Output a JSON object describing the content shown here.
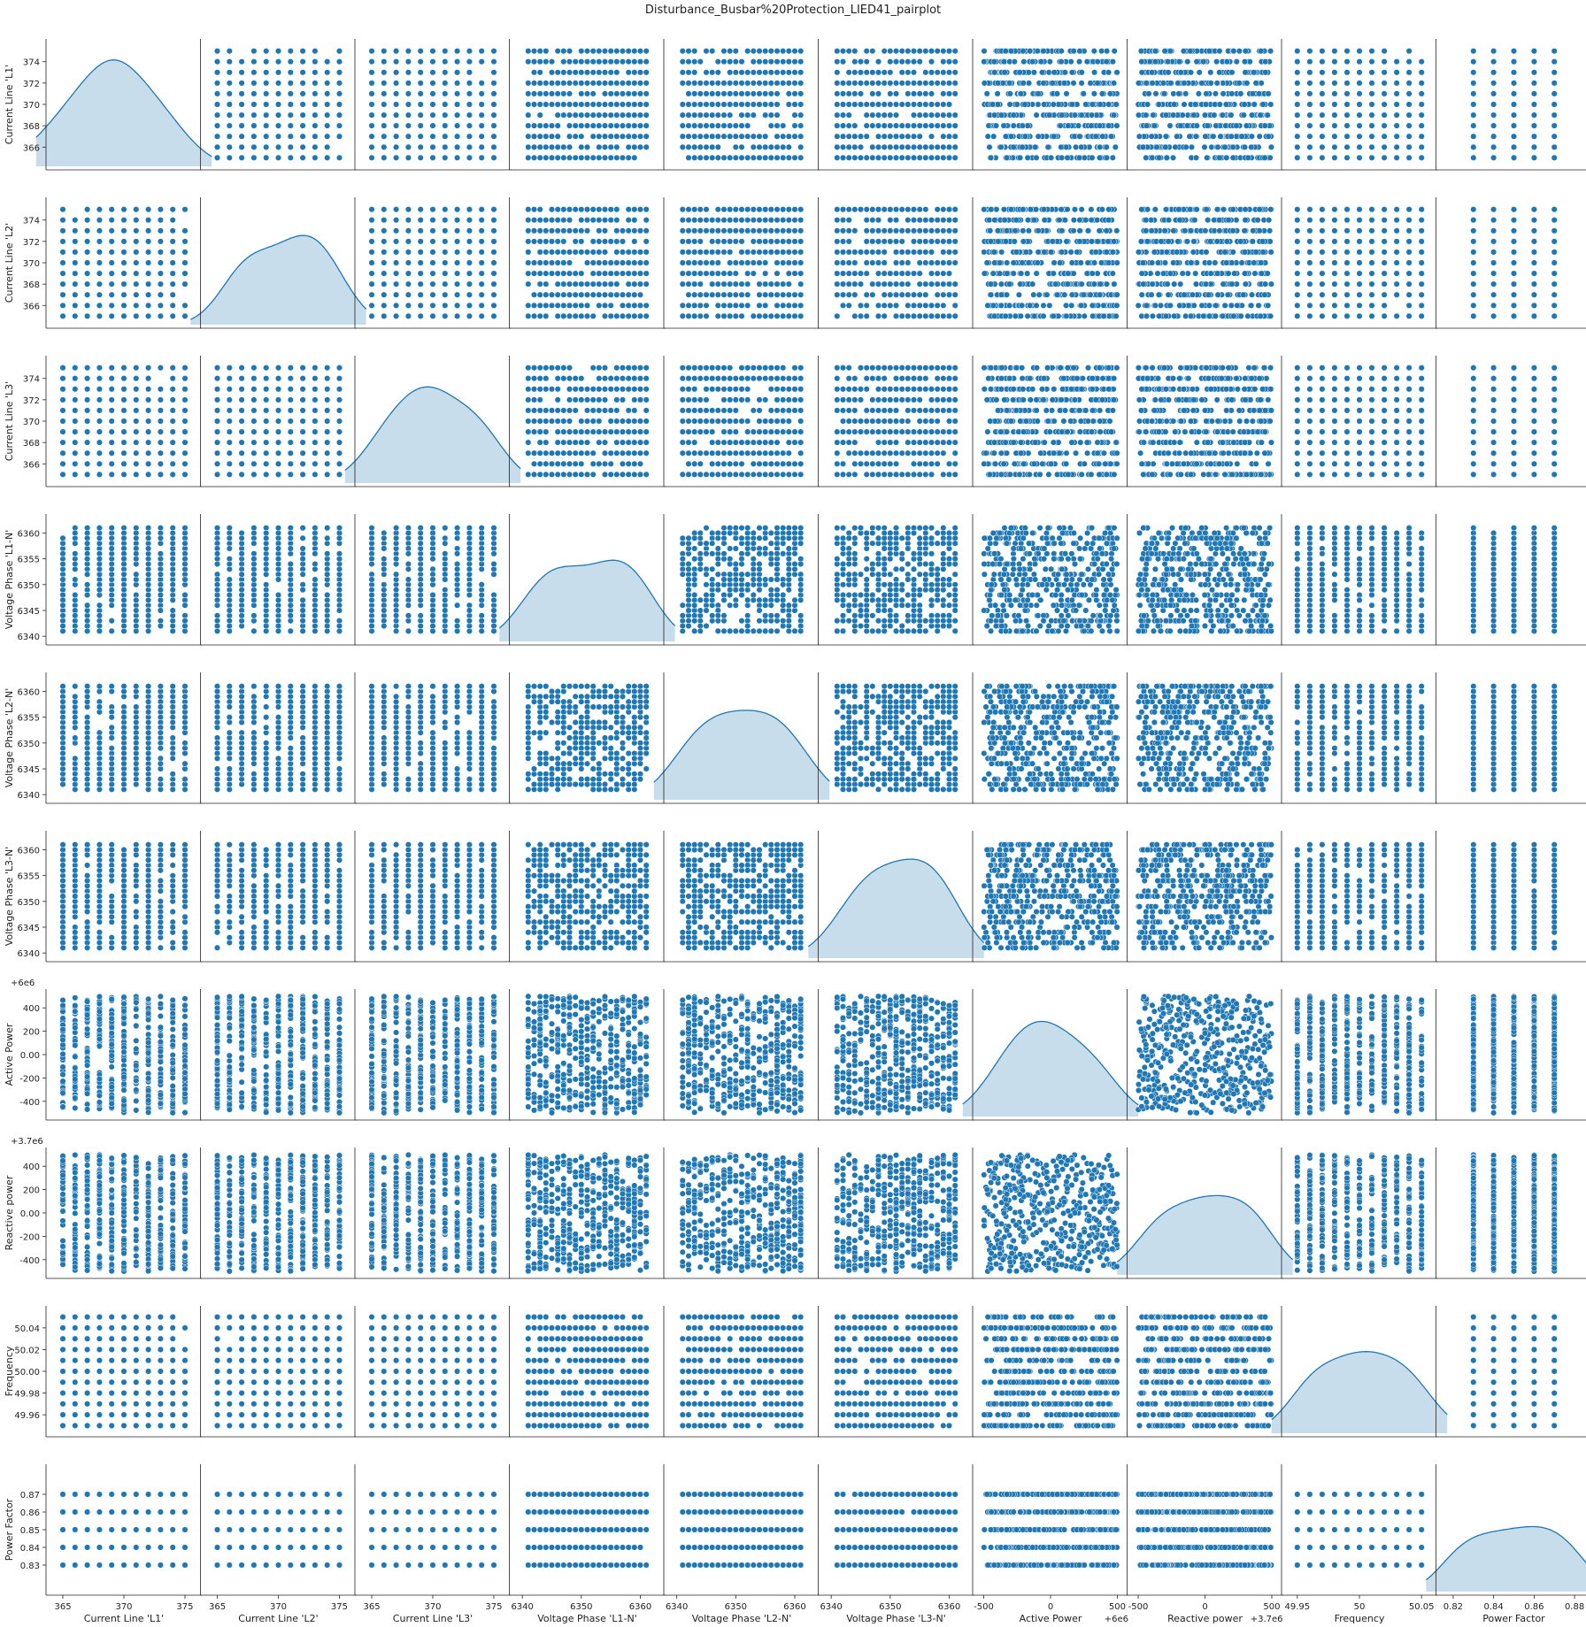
{
  "chart_data": {
    "type": "scatter",
    "title": "Disturbance_Busbar%20Protection_LIED41_pairplot",
    "variables": [
      {
        "name": "Current Line 'L1'",
        "grid": [
          365,
          375,
          1
        ],
        "ticks": [
          366,
          368,
          370,
          372,
          374
        ],
        "xticks": [
          365,
          370,
          375
        ],
        "offset_label": "",
        "kde_peaks": [
          [
            0.2,
            1.0,
            0.75
          ],
          [
            0.45,
            0.9,
            0.55
          ],
          [
            0.75,
            0.75,
            0.6
          ]
        ]
      },
      {
        "name": "Current Line 'L2'",
        "grid": [
          365,
          375,
          1
        ],
        "ticks": [
          366,
          368,
          370,
          372,
          374
        ],
        "xticks": [
          365,
          370,
          375
        ],
        "offset_label": "",
        "kde_peaks": [
          [
            0.25,
            0.75,
            0.5
          ],
          [
            0.55,
            0.85,
            0.6
          ],
          [
            0.8,
            0.95,
            0.55
          ]
        ]
      },
      {
        "name": "Current Line 'L3'",
        "grid": [
          365,
          375,
          1
        ],
        "ticks": [
          366,
          368,
          370,
          372,
          374
        ],
        "xticks": [
          365,
          370,
          375
        ],
        "offset_label": "",
        "kde_peaks": [
          [
            0.25,
            1.0,
            0.6
          ],
          [
            0.5,
            0.85,
            0.5
          ],
          [
            0.8,
            0.95,
            0.55
          ]
        ]
      },
      {
        "name": "Voltage Phase 'L1-N'",
        "grid": [
          6341,
          6361,
          1
        ],
        "ticks": [
          6340,
          6345,
          6350,
          6355,
          6360
        ],
        "xticks": [
          6340,
          6350,
          6360
        ],
        "offset_label": "",
        "kde_peaks": [
          [
            0.2,
            0.85,
            0.55
          ],
          [
            0.5,
            0.75,
            0.6
          ],
          [
            0.8,
            1.0,
            0.55
          ]
        ]
      },
      {
        "name": "Voltage Phase 'L2-N'",
        "grid": [
          6341,
          6361,
          1
        ],
        "ticks": [
          6340,
          6345,
          6350,
          6355,
          6360
        ],
        "xticks": [
          6340,
          6350,
          6360
        ],
        "offset_label": "",
        "kde_peaks": [
          [
            0.2,
            0.9,
            0.6
          ],
          [
            0.5,
            0.85,
            0.6
          ],
          [
            0.8,
            0.95,
            0.6
          ]
        ]
      },
      {
        "name": "Voltage Phase 'L3-N'",
        "grid": [
          6341,
          6361,
          1
        ],
        "ticks": [
          6340,
          6345,
          6350,
          6355,
          6360
        ],
        "xticks": [
          6340,
          6350,
          6360
        ],
        "offset_label": "",
        "kde_peaks": [
          [
            0.25,
            0.85,
            0.6
          ],
          [
            0.55,
            1.0,
            0.65
          ],
          [
            0.8,
            0.85,
            0.55
          ]
        ]
      },
      {
        "name": "Active Power",
        "grid": null,
        "ticks": [
          -400,
          -200,
          0,
          200,
          400
        ],
        "xticks": [
          -500,
          0,
          500
        ],
        "offset_label": "+6e6",
        "kde_peaks": [
          [
            0.25,
            0.95,
            0.6
          ],
          [
            0.5,
            0.9,
            0.55
          ],
          [
            0.8,
            0.75,
            0.55
          ]
        ]
      },
      {
        "name": "Reactive power",
        "grid": null,
        "ticks": [
          -400,
          -200,
          0,
          200,
          400
        ],
        "xticks": [
          -500,
          0,
          500
        ],
        "offset_label": "+3.7e6",
        "kde_peaks": [
          [
            0.2,
            0.85,
            0.55
          ],
          [
            0.5,
            0.78,
            0.5
          ],
          [
            0.8,
            1.0,
            0.55
          ]
        ]
      },
      {
        "name": "Frequency",
        "grid": [
          49.95,
          50.05,
          0.01
        ],
        "ticks": [
          49.96,
          49.98,
          50.0,
          50.02,
          50.04
        ],
        "xticks": [
          49.95,
          50.0,
          50.05
        ],
        "offset_label": "",
        "kde_peaks": [
          [
            0.2,
            0.9,
            0.55
          ],
          [
            0.5,
            0.75,
            0.5
          ],
          [
            0.8,
            1.0,
            0.6
          ]
        ]
      },
      {
        "name": "Power Factor",
        "grid": [
          0.83,
          0.87,
          0.01
        ],
        "ticks": [
          0.83,
          0.84,
          0.85,
          0.86,
          0.87
        ],
        "xticks": [
          0.82,
          0.84,
          0.86,
          0.88
        ],
        "offset_label": "",
        "kde_peaks": [
          [
            0.1,
            0.8,
            0.45
          ],
          [
            0.3,
            0.85,
            0.45
          ],
          [
            0.5,
            0.9,
            0.45
          ],
          [
            0.7,
            1.0,
            0.45
          ],
          [
            0.9,
            0.85,
            0.45
          ]
        ]
      }
    ],
    "ranges": [
      [
        364.2,
        375.8
      ],
      [
        364.2,
        375.8
      ],
      [
        364.2,
        375.8
      ],
      [
        6339,
        6363
      ],
      [
        6339,
        6363
      ],
      [
        6339,
        6363
      ],
      [
        -530,
        530
      ],
      [
        -530,
        530
      ],
      [
        49.943,
        50.057
      ],
      [
        0.815,
        0.885
      ]
    ],
    "sample_size": 500,
    "grid": false,
    "legend": "none"
  },
  "colors": {
    "points": "#1f77b4",
    "kde_fill": "#1f77b4",
    "axis": "#222222"
  }
}
